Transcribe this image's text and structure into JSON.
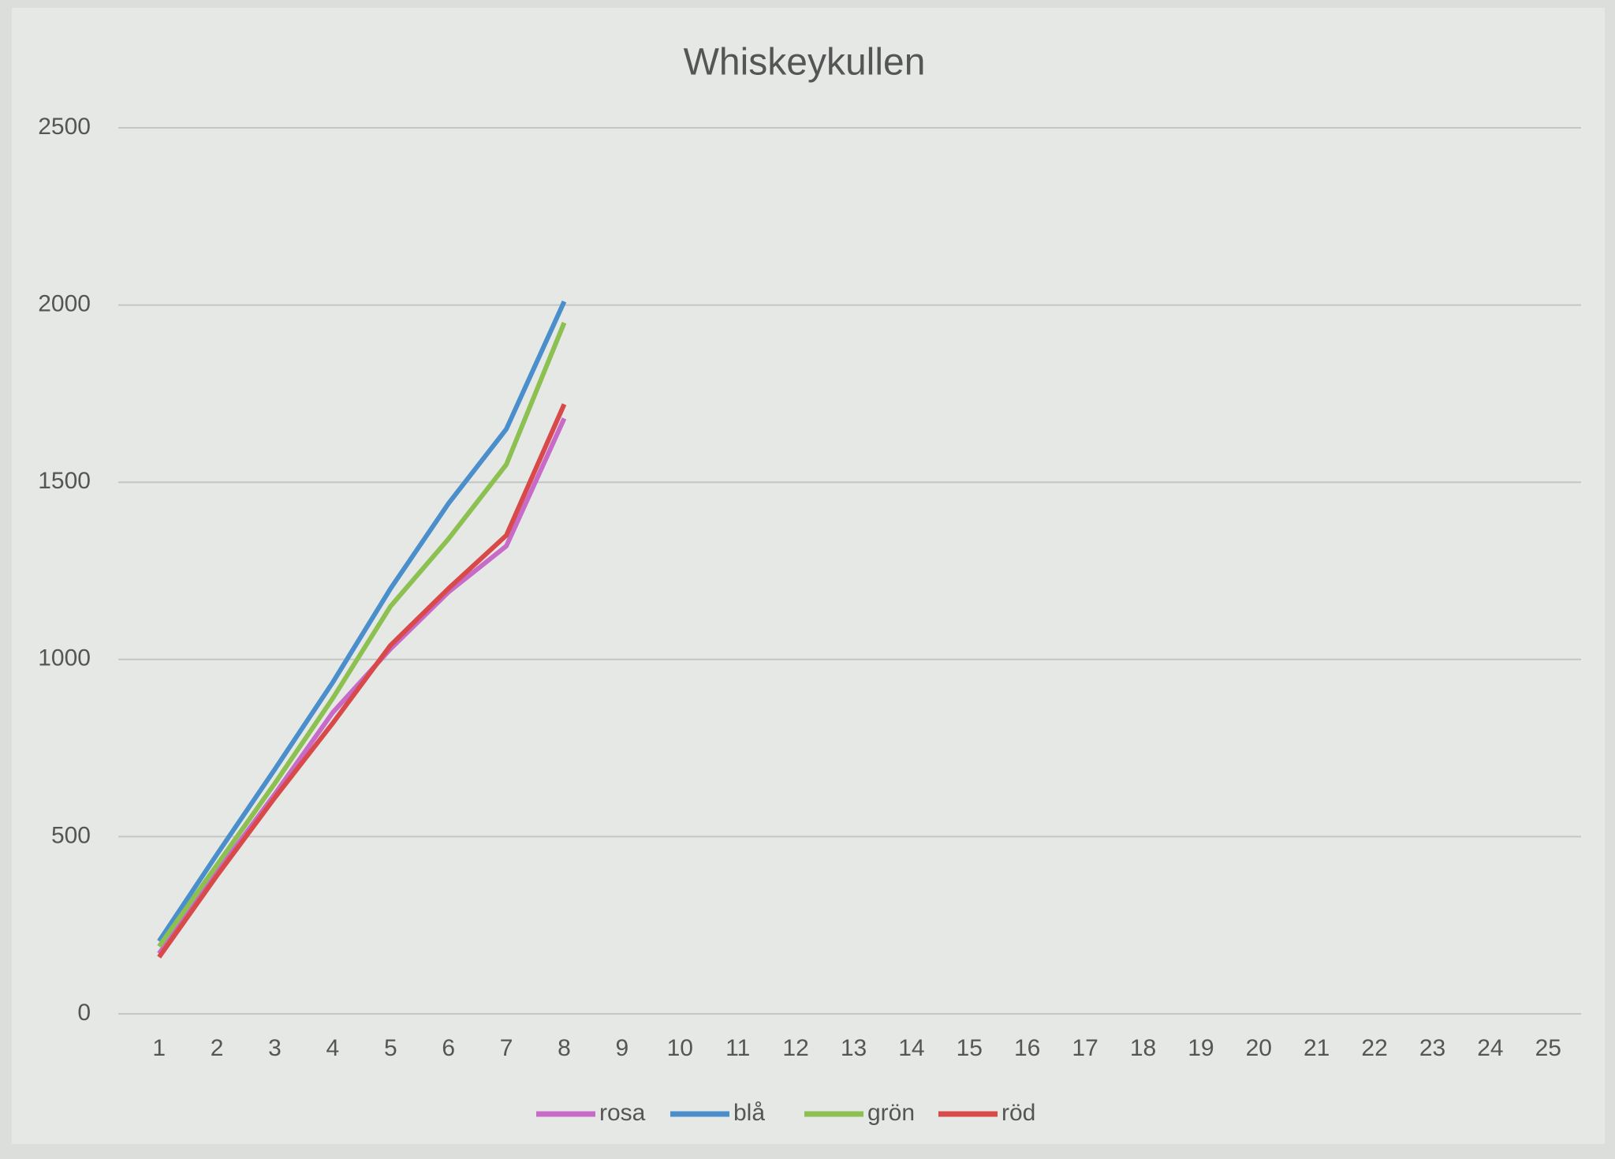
{
  "chart_data": {
    "type": "line",
    "title": "Whiskeykullen",
    "categories": [
      "1",
      "2",
      "3",
      "4",
      "5",
      "6",
      "7",
      "8",
      "9",
      "10",
      "11",
      "12",
      "13",
      "14",
      "15",
      "16",
      "17",
      "18",
      "19",
      "20",
      "21",
      "22",
      "23",
      "24",
      "25"
    ],
    "series": [
      {
        "name": "rosa",
        "color": "#c86ac8",
        "values": [
          170,
          400,
          620,
          850,
          1030,
          1190,
          1320,
          1680,
          null,
          null,
          null,
          null,
          null,
          null,
          null,
          null,
          null,
          null,
          null,
          null,
          null,
          null,
          null,
          null,
          null
        ]
      },
      {
        "name": "blå",
        "color": "#4a8fcc",
        "values": [
          205,
          450,
          690,
          935,
          1200,
          1440,
          1650,
          2010,
          null,
          null,
          null,
          null,
          null,
          null,
          null,
          null,
          null,
          null,
          null,
          null,
          null,
          null,
          null,
          null,
          null
        ]
      },
      {
        "name": "grön",
        "color": "#8cc050",
        "values": [
          190,
          420,
          650,
          890,
          1150,
          1340,
          1550,
          1950,
          null,
          null,
          null,
          null,
          null,
          null,
          null,
          null,
          null,
          null,
          null,
          null,
          null,
          null,
          null,
          null,
          null
        ]
      },
      {
        "name": "röd",
        "color": "#d84a4a",
        "values": [
          160,
          390,
          610,
          820,
          1040,
          1200,
          1350,
          1720,
          null,
          null,
          null,
          null,
          null,
          null,
          null,
          null,
          null,
          null,
          null,
          null,
          null,
          null,
          null,
          null,
          null
        ]
      }
    ],
    "ylim": [
      0,
      2500
    ],
    "yticks": [
      0,
      500,
      1000,
      1500,
      2000,
      2500
    ],
    "grid": true,
    "legend": "bottom"
  }
}
